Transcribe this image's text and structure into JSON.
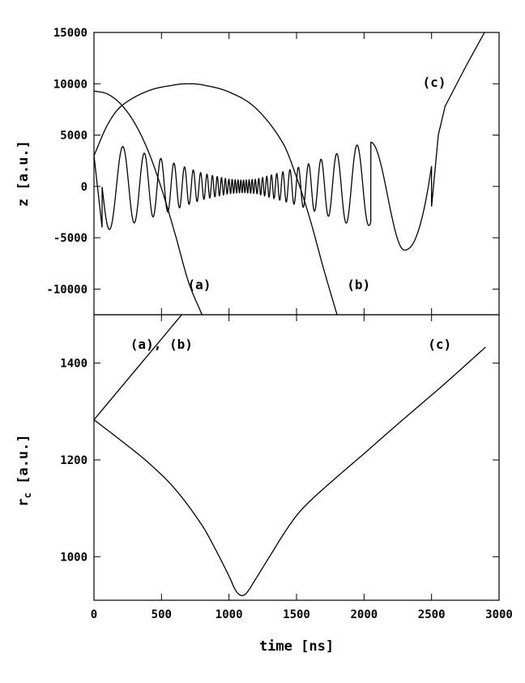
{
  "chart_data": [
    {
      "type": "line",
      "panel": "top",
      "title": "",
      "xlabel": "",
      "ylabel": "z [a.u.]",
      "xlim": [
        0,
        3000
      ],
      "ylim": [
        -12500,
        15000
      ],
      "yticks": [
        15000,
        10000,
        5000,
        0,
        -5000,
        -10000
      ],
      "ytick_labels": [
        "15000",
        "10000",
        "5000",
        "0",
        "-5000",
        "-10000"
      ],
      "xticks": [
        0,
        500,
        1000,
        1500,
        2000,
        2500,
        3000
      ],
      "grid": false,
      "series": [
        {
          "label": "(a)",
          "x": [
            0,
            100,
            200,
            300,
            400,
            500,
            600,
            700,
            800
          ],
          "y": [
            9300,
            9000,
            8000,
            6200,
            3500,
            -200,
            -4600,
            -9300,
            -12500
          ]
        },
        {
          "label": "(b)",
          "x": [
            0,
            100,
            200,
            400,
            600,
            700,
            800,
            1000,
            1200,
            1400,
            1500,
            1600,
            1700,
            1800
          ],
          "y": [
            3000,
            6000,
            7800,
            9300,
            9900,
            10000,
            9900,
            9200,
            7600,
            4200,
            900,
            -3200,
            -8000,
            -12500
          ]
        },
        {
          "label": "(c)",
          "description_points": "oscillation envelope",
          "x": [
            0,
            80,
            240,
            500,
            800,
            1000,
            1100,
            1200,
            1500,
            1800,
            2000,
            2100,
            2300,
            2450,
            2500,
            2600,
            2750,
            2900
          ],
          "y_envelope": [
            4300,
            4300,
            3800,
            2700,
            1300,
            700,
            600,
            700,
            1800,
            3200,
            4300,
            3000,
            -6200,
            -3500,
            5000,
            8500,
            11700,
            15000
          ]
        }
      ],
      "annotations": [
        {
          "text": "(a)",
          "x": 780,
          "y": -10000
        },
        {
          "text": "(b)",
          "x": 1960,
          "y": -10000
        },
        {
          "text": "(c)",
          "x": 2520,
          "y": 9700
        }
      ]
    },
    {
      "type": "line",
      "panel": "bottom",
      "title": "",
      "xlabel": "time [ns]",
      "ylabel": "r_c [a.u.]",
      "ylabel_main": "r",
      "ylabel_sub": "c",
      "ylabel_rest": " [a.u.]",
      "xlim": [
        0,
        3000
      ],
      "ylim": [
        910,
        1500
      ],
      "yticks": [
        1400,
        1200,
        1000
      ],
      "ytick_labels": [
        "1400",
        "1200",
        "1000"
      ],
      "xticks": [
        0,
        500,
        1000,
        1500,
        2000,
        2500,
        3000
      ],
      "xtick_labels": [
        "0",
        "500",
        "1000",
        "1500",
        "2000",
        "2500",
        "3000"
      ],
      "grid": false,
      "series": [
        {
          "label": "(a), (b)",
          "x": [
            0,
            650
          ],
          "y": [
            1283,
            1500
          ]
        },
        {
          "label": "(c)",
          "x": [
            0,
            200,
            400,
            600,
            800,
            900,
            1000,
            1050,
            1090,
            1130,
            1200,
            1300,
            1400,
            1500,
            1600,
            1800,
            2000,
            2200,
            2400,
            2600,
            2800,
            2900
          ],
          "y": [
            1283,
            1240,
            1195,
            1140,
            1065,
            1015,
            960,
            930,
            920,
            925,
            955,
            1000,
            1045,
            1085,
            1115,
            1165,
            1213,
            1262,
            1310,
            1358,
            1408,
            1433
          ]
        }
      ],
      "annotations": [
        {
          "text": "(a), (b)",
          "x": 500,
          "y": 1430
        },
        {
          "text": "(c)",
          "x": 2560,
          "y": 1430
        }
      ]
    }
  ]
}
